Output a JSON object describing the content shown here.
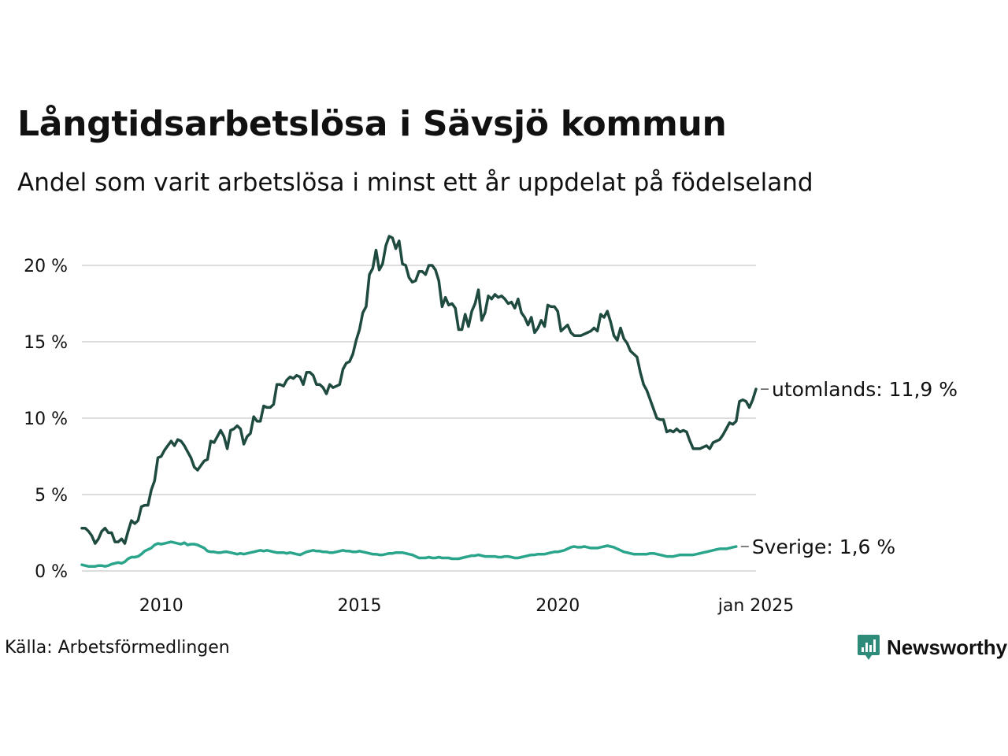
{
  "title": "Långtidsarbetslösa i Sävsjö kommun",
  "subtitle": "Andel som varit arbetslösa i minst ett år uppdelat på födelseland",
  "source": "Källa: Arbetsförmedlingen",
  "logo": {
    "text": "Newsworthy",
    "icon": "bar-chart-pin-icon",
    "color": "#2e8b7a"
  },
  "colors": {
    "utomlands": "#1f4a3f",
    "sverige": "#2aa58c",
    "grid": "#dddddd"
  },
  "chart_data": {
    "type": "line",
    "title": "Långtidsarbetslösa i Sävsjö kommun",
    "subtitle": "Andel som varit arbetslösa i minst ett år uppdelat på födelseland",
    "x_start": 2008.0,
    "x_step": 0.0833333,
    "xlim": [
      2008.0,
      2025.0
    ],
    "ylim": [
      0,
      22
    ],
    "grid": true,
    "y_ticks": [
      {
        "value": 0,
        "label": "0 %"
      },
      {
        "value": 5,
        "label": "5 %"
      },
      {
        "value": 10,
        "label": "10 %"
      },
      {
        "value": 15,
        "label": "15 %"
      },
      {
        "value": 20,
        "label": "20 %"
      }
    ],
    "x_ticks": [
      {
        "value": 2010,
        "label": "2010"
      },
      {
        "value": 2015,
        "label": "2015"
      },
      {
        "value": 2020,
        "label": "2020"
      },
      {
        "value": 2025,
        "label": "jan 2025"
      }
    ],
    "series": [
      {
        "name": "utomlands",
        "end_label": "utomlands: 11,9 %",
        "color": "#1f4a3f",
        "values": [
          2.8,
          2.8,
          2.6,
          2.3,
          1.8,
          2.1,
          2.6,
          2.8,
          2.5,
          2.5,
          1.9,
          1.9,
          2.1,
          1.8,
          2.6,
          3.3,
          3.1,
          3.3,
          4.2,
          4.3,
          4.3,
          5.3,
          5.9,
          7.4,
          7.5,
          7.9,
          8.2,
          8.5,
          8.2,
          8.6,
          8.5,
          8.2,
          7.8,
          7.4,
          6.8,
          6.6,
          6.9,
          7.2,
          7.3,
          8.5,
          8.4,
          8.8,
          9.2,
          8.8,
          8.0,
          9.2,
          9.3,
          9.5,
          9.3,
          8.3,
          8.8,
          9.0,
          10.1,
          9.8,
          9.8,
          10.8,
          10.7,
          10.7,
          10.9,
          12.2,
          12.2,
          12.1,
          12.5,
          12.7,
          12.6,
          12.8,
          12.7,
          12.2,
          13.0,
          13.0,
          12.8,
          12.2,
          12.2,
          12.0,
          11.6,
          12.2,
          12.0,
          12.1,
          12.2,
          13.2,
          13.6,
          13.7,
          14.2,
          15.1,
          15.8,
          16.9,
          17.3,
          19.4,
          19.8,
          21.0,
          19.7,
          20.1,
          21.3,
          21.9,
          21.8,
          21.1,
          21.6,
          20.1,
          20.0,
          19.2,
          18.9,
          19.0,
          19.6,
          19.6,
          19.4,
          20.0,
          20.0,
          19.7,
          19.0,
          17.3,
          17.9,
          17.4,
          17.5,
          17.2,
          15.8,
          15.8,
          16.8,
          16.0,
          17.0,
          17.5,
          18.4,
          16.4,
          16.9,
          18.0,
          17.8,
          18.1,
          17.9,
          18.0,
          17.8,
          17.5,
          17.6,
          17.2,
          17.8,
          16.9,
          16.6,
          16.1,
          16.6,
          15.6,
          15.9,
          16.4,
          16.0,
          17.4,
          17.3,
          17.3,
          17.0,
          15.7,
          15.9,
          16.1,
          15.6,
          15.4,
          15.4,
          15.4,
          15.5,
          15.6,
          15.7,
          15.9,
          15.7,
          16.8,
          16.6,
          17.0,
          16.3,
          15.4,
          15.1,
          15.9,
          15.2,
          14.9,
          14.4,
          14.2,
          14.0,
          13.0,
          12.2,
          11.8,
          11.2,
          10.6,
          10.0,
          9.9,
          9.9,
          9.1,
          9.2,
          9.1,
          9.3,
          9.1,
          9.2,
          9.1,
          8.5,
          8.0,
          8.0,
          8.0,
          8.1,
          8.2,
          8.0,
          8.4,
          8.5,
          8.6,
          8.9,
          9.3,
          9.7,
          9.6,
          9.8,
          11.1,
          11.2,
          11.1,
          10.7,
          11.2,
          11.9
        ]
      },
      {
        "name": "Sverige",
        "end_label": "Sverige:  1,6 %",
        "color": "#2aa58c",
        "values": [
          0.4,
          0.35,
          0.3,
          0.3,
          0.3,
          0.35,
          0.35,
          0.3,
          0.35,
          0.45,
          0.5,
          0.55,
          0.5,
          0.6,
          0.8,
          0.9,
          0.9,
          0.95,
          1.1,
          1.3,
          1.4,
          1.5,
          1.7,
          1.8,
          1.75,
          1.8,
          1.85,
          1.9,
          1.85,
          1.8,
          1.75,
          1.85,
          1.7,
          1.75,
          1.75,
          1.7,
          1.6,
          1.5,
          1.3,
          1.25,
          1.25,
          1.2,
          1.2,
          1.25,
          1.25,
          1.2,
          1.15,
          1.1,
          1.15,
          1.1,
          1.15,
          1.2,
          1.25,
          1.3,
          1.35,
          1.3,
          1.35,
          1.3,
          1.25,
          1.2,
          1.2,
          1.2,
          1.15,
          1.2,
          1.15,
          1.1,
          1.05,
          1.15,
          1.25,
          1.3,
          1.35,
          1.3,
          1.3,
          1.25,
          1.25,
          1.2,
          1.2,
          1.25,
          1.3,
          1.35,
          1.3,
          1.3,
          1.25,
          1.25,
          1.3,
          1.25,
          1.2,
          1.15,
          1.1,
          1.1,
          1.05,
          1.05,
          1.1,
          1.15,
          1.15,
          1.2,
          1.2,
          1.2,
          1.15,
          1.1,
          1.05,
          0.95,
          0.85,
          0.85,
          0.85,
          0.9,
          0.85,
          0.85,
          0.9,
          0.85,
          0.85,
          0.85,
          0.8,
          0.8,
          0.8,
          0.85,
          0.9,
          0.95,
          1.0,
          1.0,
          1.05,
          1.0,
          0.95,
          0.95,
          0.95,
          0.95,
          0.9,
          0.9,
          0.95,
          0.95,
          0.9,
          0.85,
          0.85,
          0.9,
          0.95,
          1.0,
          1.05,
          1.05,
          1.1,
          1.1,
          1.1,
          1.15,
          1.2,
          1.25,
          1.25,
          1.3,
          1.35,
          1.45,
          1.55,
          1.6,
          1.55,
          1.55,
          1.6,
          1.55,
          1.5,
          1.5,
          1.5,
          1.55,
          1.6,
          1.65,
          1.6,
          1.55,
          1.45,
          1.35,
          1.25,
          1.2,
          1.15,
          1.1,
          1.1,
          1.1,
          1.1,
          1.1,
          1.15,
          1.15,
          1.1,
          1.05,
          1.0,
          0.95,
          0.95,
          0.95,
          1.0,
          1.05,
          1.05,
          1.05,
          1.05,
          1.05,
          1.1,
          1.15,
          1.2,
          1.25,
          1.3,
          1.35,
          1.4,
          1.45,
          1.45,
          1.45,
          1.5,
          1.55,
          1.6
        ]
      }
    ]
  }
}
